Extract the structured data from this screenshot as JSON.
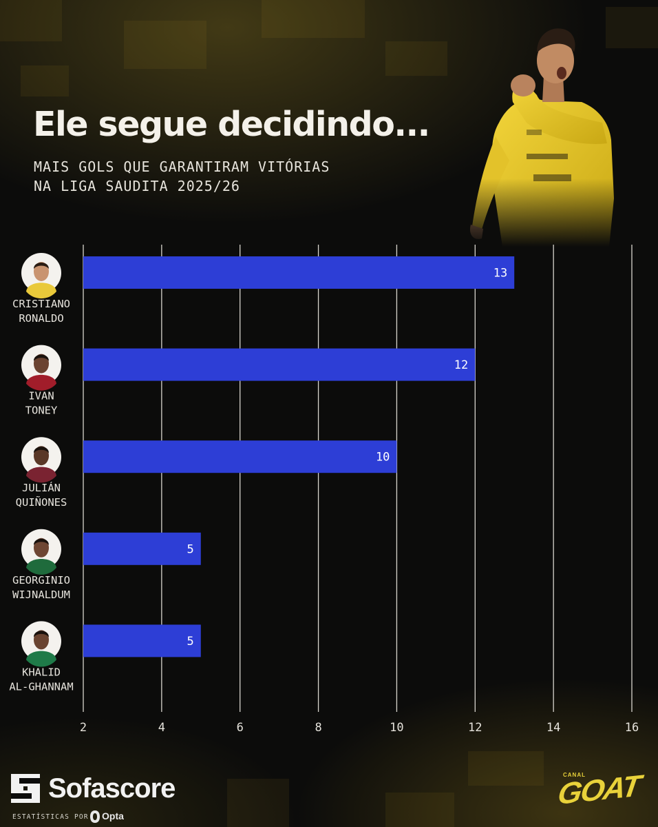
{
  "header": {
    "title": "Ele segue decidindo...",
    "subtitle_line1": "MAIS GOLS QUE GARANTIRAM VITÓRIAS",
    "subtitle_line2": "NA LIGA SAUDITA 2025/26"
  },
  "chart_data": {
    "type": "bar",
    "orientation": "horizontal",
    "categories": [
      [
        "CRISTIANO",
        "RONALDO"
      ],
      [
        "IVAN",
        "TONEY"
      ],
      [
        "JULIÁN",
        "QUIÑONES"
      ],
      [
        "GEORGINIO",
        "WIJNALDUM"
      ],
      [
        "KHALID",
        "AL-GHANNAM"
      ]
    ],
    "values": [
      13,
      12,
      10,
      5,
      5
    ],
    "data_labels": [
      "13",
      "12",
      "10",
      "5",
      "5"
    ],
    "x_ticks": [
      2,
      4,
      6,
      8,
      10,
      12,
      14,
      16
    ],
    "x_tick_labels": [
      "2",
      "4",
      "6",
      "8",
      "10",
      "12",
      "14",
      "16"
    ],
    "xlim": [
      2,
      16
    ],
    "grid": "vertical",
    "bar_color": "#2d3ed6"
  },
  "footer": {
    "brand": "Sofascore",
    "stats_by": "ESTATÍSTICAS POR",
    "stats_provider": "Opta",
    "partner_small": "CANAL",
    "partner": "GOAT"
  },
  "colors": {
    "background": "#0c0c0b",
    "accent_gold": "#e9d23a",
    "bar": "#2d3ed6",
    "grid": "#d9d6cf"
  }
}
